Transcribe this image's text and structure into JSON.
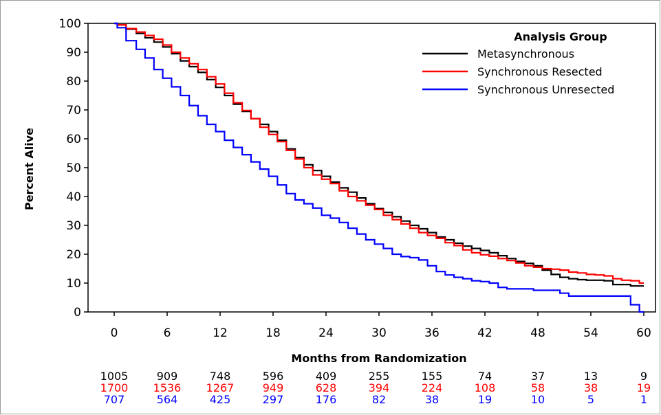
{
  "chart_data": {
    "type": "line",
    "title": "",
    "xlabel": "Months from Randomization",
    "ylabel": "Percent Alive",
    "xlim": [
      0,
      60
    ],
    "ylim": [
      0,
      100
    ],
    "x_ticks": [
      0,
      6,
      12,
      18,
      24,
      30,
      36,
      42,
      48,
      54,
      60
    ],
    "y_ticks": [
      0,
      10,
      20,
      30,
      40,
      50,
      60,
      70,
      80,
      90,
      100
    ],
    "grid": false,
    "legend": {
      "title": "Analysis Group",
      "placement": "top-right"
    },
    "series": [
      {
        "name": "Metasynchronous",
        "color": "#000000",
        "x": [
          0,
          0.7,
          2,
          3,
          4,
          5,
          6,
          7,
          8,
          9,
          10,
          11,
          12,
          13,
          14,
          15,
          16,
          17,
          18,
          19,
          20,
          21,
          22,
          23,
          24,
          25,
          26,
          27,
          28,
          29,
          30,
          31,
          32,
          33,
          34,
          35,
          36,
          37,
          38,
          39,
          40,
          41,
          42,
          43,
          44,
          45,
          46,
          47,
          48,
          49,
          50,
          51,
          52,
          53,
          54,
          55,
          56,
          57,
          58,
          59,
          60
        ],
        "y": [
          100,
          99.5,
          98,
          96.5,
          95,
          93.5,
          91.8,
          89.5,
          87,
          85,
          83,
          80.5,
          77.8,
          75,
          72,
          69.5,
          67,
          65,
          62.5,
          59.5,
          56.5,
          53.5,
          51,
          49,
          47,
          45,
          43,
          41.5,
          39.5,
          37.5,
          35.8,
          34.5,
          33,
          31.5,
          30,
          28.8,
          27.5,
          26,
          25,
          23.8,
          22.8,
          22,
          21.3,
          20.5,
          19.5,
          18.5,
          17.5,
          16.8,
          16,
          14.5,
          13,
          12,
          11.5,
          11.2,
          11,
          11,
          10.8,
          9.5,
          9.5,
          9,
          9
        ]
      },
      {
        "name": "Synchronous Resected",
        "color": "#ff0000",
        "x": [
          0,
          0.7,
          2,
          3,
          4,
          5,
          6,
          7,
          8,
          9,
          10,
          11,
          12,
          13,
          14,
          15,
          16,
          17,
          18,
          19,
          20,
          21,
          22,
          23,
          24,
          25,
          26,
          27,
          28,
          29,
          30,
          31,
          32,
          33,
          34,
          35,
          36,
          37,
          38,
          39,
          40,
          41,
          42,
          43,
          44,
          45,
          46,
          47,
          48,
          49,
          50,
          51,
          52,
          53,
          54,
          55,
          56,
          57,
          58,
          59,
          60
        ],
        "y": [
          100,
          99.5,
          98.2,
          97,
          95.8,
          94.5,
          92.5,
          90,
          88,
          86,
          84,
          81.5,
          79,
          75.8,
          72.5,
          69.8,
          67,
          64,
          61.5,
          59,
          56,
          53,
          50,
          47.5,
          46,
          44.5,
          42,
          40,
          38.5,
          37,
          35.5,
          33.5,
          32,
          30.5,
          29,
          27.5,
          26.5,
          25.5,
          24,
          23,
          21.5,
          20.5,
          19.8,
          19.3,
          18.5,
          17.8,
          17,
          16,
          15.5,
          15,
          14.8,
          14.5,
          13.8,
          13.5,
          13,
          12.8,
          12.5,
          11.5,
          11,
          10.8,
          10
        ]
      },
      {
        "name": "Synchronous Unresected",
        "color": "#0000ff",
        "x": [
          0,
          0.7,
          2,
          3,
          4,
          5,
          6,
          7,
          8,
          9,
          10,
          11,
          12,
          13,
          14,
          15,
          16,
          17,
          18,
          19,
          20,
          21,
          22,
          23,
          24,
          25,
          26,
          27,
          28,
          29,
          30,
          31,
          32,
          33,
          34,
          35,
          36,
          37,
          38,
          39,
          40,
          41,
          42,
          43,
          44,
          45,
          46,
          47,
          48,
          49,
          50,
          51,
          52,
          53,
          54,
          55,
          56,
          57,
          58,
          59,
          60
        ],
        "y": [
          100,
          98.5,
          94,
          91,
          88,
          84,
          81,
          78,
          75,
          71.5,
          68,
          65,
          62.5,
          59.5,
          57,
          54.5,
          52,
          49.5,
          47,
          44,
          41,
          38.8,
          37.5,
          36,
          33.5,
          32.5,
          31,
          29,
          27,
          25,
          23.5,
          22,
          20,
          19.2,
          18.8,
          18,
          16,
          14,
          12.8,
          12,
          11.5,
          10.8,
          10.5,
          10,
          8.5,
          8,
          8,
          8,
          7.5,
          7.5,
          7.5,
          6.5,
          5.5,
          5.5,
          5.5,
          5.5,
          5.5,
          5.5,
          5.5,
          2.5,
          0
        ]
      }
    ],
    "risk_table": [
      {
        "series": "Metasynchronous",
        "color": "#000000",
        "counts": [
          "1005",
          "909",
          "748",
          "596",
          "409",
          "255",
          "155",
          "74",
          "37",
          "13",
          "9"
        ]
      },
      {
        "series": "Synchronous Resected",
        "color": "#ff0000",
        "counts": [
          "1700",
          "1536",
          "1267",
          "949",
          "628",
          "394",
          "224",
          "108",
          "58",
          "38",
          "19"
        ]
      },
      {
        "series": "Synchronous Unresected",
        "color": "#0000ff",
        "counts": [
          "707",
          "564",
          "425",
          "297",
          "176",
          "82",
          "38",
          "19",
          "10",
          "5",
          "1"
        ]
      }
    ]
  }
}
